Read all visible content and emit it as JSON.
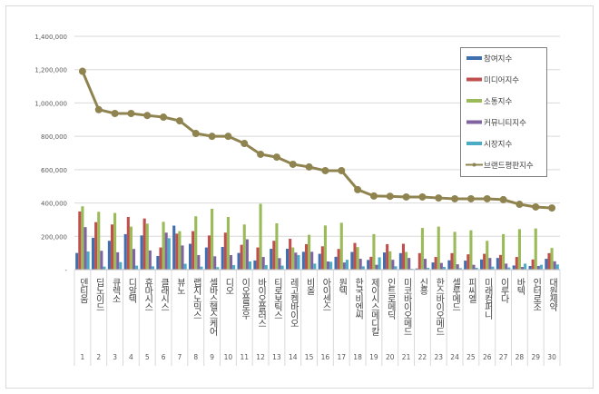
{
  "chart_data": {
    "type": "bar",
    "ylim": [
      0,
      1400000
    ],
    "yticks": [
      "-",
      "200,000",
      "400,000",
      "600,000",
      "800,000",
      "1,000,000",
      "1,200,000",
      "1,400,000"
    ],
    "grid": true,
    "legend_position": "top-right",
    "categories": [
      "덴티움",
      "딥노이드",
      "큐렉소",
      "디알텍",
      "휴마시스",
      "클래시스",
      "뷰노",
      "랩지노믹스",
      "셀바스헬스케어",
      "디오",
      "이오플로우",
      "바이오플러스",
      "티로보틱스",
      "레고켐바이오",
      "비올",
      "아이센스",
      "원텍",
      "한국비엔씨",
      "제이시스메디칼",
      "인트로메딕",
      "미코바이오메드",
      "신흥",
      "한스바이오메드",
      "셀루메드",
      "피씨엘",
      "미래컴퍼니",
      "이루다",
      "바텍",
      "인터로조",
      "대원제약"
    ],
    "ranks": [
      "1",
      "2",
      "3",
      "4",
      "5",
      "6",
      "7",
      "8",
      "9",
      "10",
      "11",
      "12",
      "13",
      "14",
      "15",
      "16",
      "17",
      "18",
      "19",
      "20",
      "21",
      "22",
      "23",
      "24",
      "25",
      "26",
      "27",
      "28",
      "29",
      "30"
    ],
    "series": [
      {
        "name": "참여지수",
        "type": "bar",
        "color": "#3f6fb0",
        "values": [
          100000,
          191000,
          173000,
          213000,
          205000,
          82000,
          264000,
          155000,
          133000,
          136000,
          100000,
          55000,
          125000,
          125000,
          107000,
          95000,
          77000,
          106000,
          58000,
          103000,
          99000,
          7000,
          43000,
          56000,
          54000,
          61000,
          70000,
          25000,
          22000,
          65000
        ]
      },
      {
        "name": "미디어지수",
        "type": "bar",
        "color": "#c0504d",
        "values": [
          349000,
          285000,
          271000,
          316000,
          307000,
          133000,
          216000,
          231000,
          205000,
          222000,
          149000,
          133000,
          173000,
          185000,
          153000,
          140000,
          124000,
          160000,
          77000,
          153000,
          155000,
          99000,
          76000,
          99000,
          92000,
          95000,
          88000,
          76000,
          61000,
          99000
        ]
      },
      {
        "name": "소통지수",
        "type": "bar",
        "color": "#9bbb59",
        "values": [
          380000,
          347000,
          340000,
          258000,
          276000,
          287000,
          231000,
          320000,
          365000,
          316000,
          271000,
          395000,
          278000,
          133000,
          209000,
          265000,
          281000,
          135000,
          213000,
          110000,
          106000,
          250000,
          258000,
          227000,
          236000,
          173000,
          213000,
          243000,
          247000,
          130000
        ]
      },
      {
        "name": "커뮤니티지수",
        "type": "bar",
        "color": "#8064a2",
        "values": [
          255000,
          113000,
          104000,
          124000,
          115000,
          222000,
          145000,
          87000,
          80000,
          87000,
          182000,
          76000,
          69000,
          102000,
          107000,
          49000,
          43000,
          65000,
          29000,
          59000,
          70000,
          65000,
          40000,
          32000,
          29000,
          70000,
          36000,
          16000,
          22000,
          50000
        ]
      },
      {
        "name": "시장지수",
        "type": "bar",
        "color": "#4bacc6",
        "values": [
          109000,
          18000,
          45000,
          24000,
          20000,
          189000,
          35000,
          18000,
          15000,
          27000,
          49000,
          27000,
          24000,
          87000,
          36000,
          47000,
          59000,
          20000,
          74000,
          20000,
          5000,
          11000,
          16000,
          9000,
          11000,
          18000,
          13000,
          36000,
          29000,
          31000
        ]
      },
      {
        "name": "브랜드평판지수",
        "type": "line",
        "color": "#8f8450",
        "values": [
          1190000,
          960000,
          937000,
          937000,
          925000,
          915000,
          893000,
          817000,
          800000,
          800000,
          757000,
          692000,
          675000,
          632000,
          616000,
          594000,
          594000,
          480000,
          442000,
          440000,
          436000,
          436000,
          430000,
          425000,
          425000,
          425000,
          420000,
          392000,
          376000,
          370000
        ]
      }
    ]
  }
}
